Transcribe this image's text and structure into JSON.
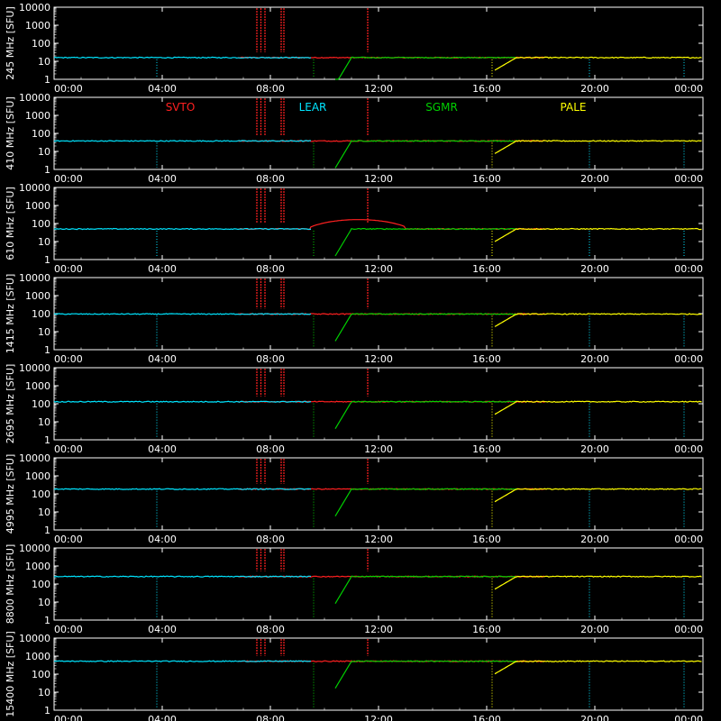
{
  "colors": {
    "background": "#000000",
    "axis": "#ffffff",
    "SVTO": "#ff2020",
    "LEAR": "#00e5ff",
    "SGMR": "#00d000",
    "PALE": "#ffff00"
  },
  "chart_data": {
    "type": "line",
    "x_tick_labels": [
      "00:00",
      "04:00",
      "08:00",
      "12:00",
      "16:00",
      "20:00",
      "00:00"
    ],
    "x_range_hours": [
      0,
      24
    ],
    "y_scale": "log",
    "y_range": [
      1,
      10000
    ],
    "y_tick_labels": [
      "1",
      "10",
      "100",
      "1000",
      "10000"
    ],
    "legend": {
      "placement": "top (second panel)",
      "entries": [
        "SVTO",
        "LEAR",
        "SGMR",
        "PALE"
      ]
    },
    "stations": [
      "SVTO",
      "LEAR",
      "SGMR",
      "PALE"
    ],
    "station_coverage_hours": {
      "LEAR": [
        0,
        9.5
      ],
      "SGMR": [
        10.4,
        17.2
      ],
      "SVTO": [
        6.8,
        18.2
      ],
      "PALE": [
        16.3,
        24
      ]
    },
    "spike_hours": [
      7.5,
      7.65,
      7.8,
      8.4,
      8.5,
      11.6
    ],
    "panels": [
      {
        "ylabel": "245 MHz [SFU]",
        "level": 16
      },
      {
        "ylabel": "410 MHz [SFU]",
        "level": 38
      },
      {
        "ylabel": "610 MHz [SFU]",
        "level": 50
      },
      {
        "ylabel": "1415 MHz [SFU]",
        "level": 95
      },
      {
        "ylabel": "2695 MHz [SFU]",
        "level": 130
      },
      {
        "ylabel": "4995 MHz [SFU]",
        "level": 185
      },
      {
        "ylabel": "8800 MHz [SFU]",
        "level": 260
      },
      {
        "ylabel": "15400 MHz [SFU]",
        "level": 520
      }
    ]
  }
}
